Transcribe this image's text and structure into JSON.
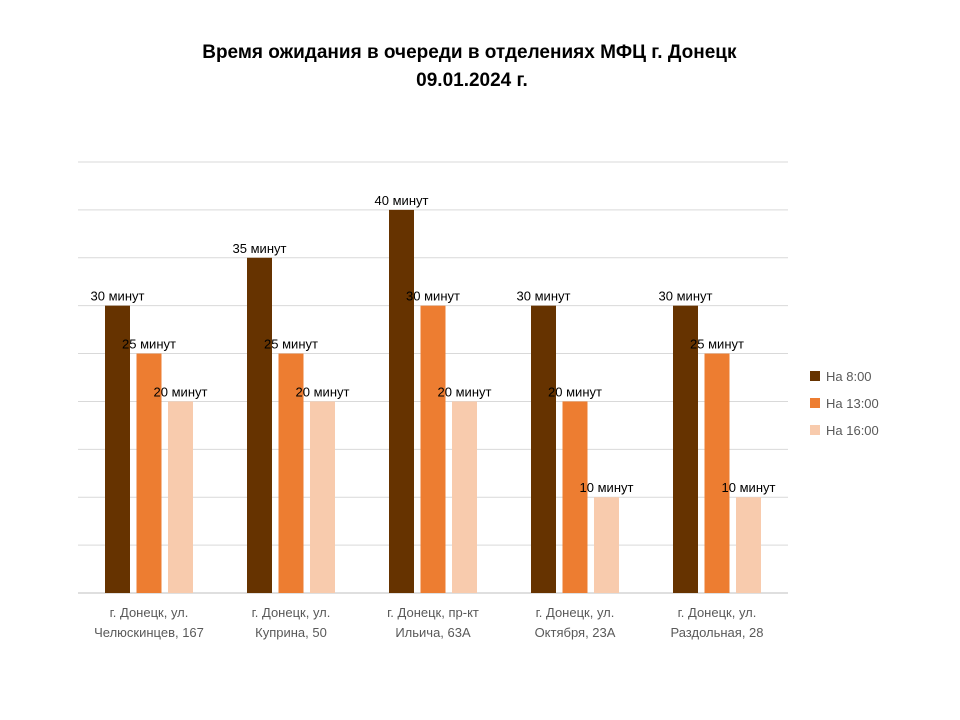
{
  "chart_data": {
    "type": "bar",
    "title": [
      "Время ожидания в очереди в отделениях МФЦ г. Донецк",
      "09.01.2024 г."
    ],
    "categories": [
      [
        "г. Донецк, ул.",
        "Челюскинцев, 167"
      ],
      [
        "г. Донецк, ул.",
        "Куприна, 50"
      ],
      [
        "г. Донецк, пр-кт",
        "Ильича, 63А"
      ],
      [
        "г. Донецк, ул.",
        "Октября, 23А"
      ],
      [
        "г. Донецк, ул.",
        "Раздольная, 28"
      ]
    ],
    "series": [
      {
        "name": "На 8:00",
        "color": "#663300",
        "values": [
          30,
          35,
          40,
          30,
          30
        ],
        "labels": [
          "30 минут",
          "35 минут",
          "40 минут",
          "30 минут",
          "30 минут"
        ]
      },
      {
        "name": "На 13:00",
        "color": "#ED7D31",
        "values": [
          25,
          25,
          30,
          20,
          25
        ],
        "labels": [
          "25 минут",
          "25 минут",
          "30 минут",
          "20 минут",
          "25 минут"
        ]
      },
      {
        "name": "На 16:00",
        "color": "#F8CBAD",
        "values": [
          20,
          20,
          20,
          10,
          10
        ],
        "labels": [
          "20 минут",
          "20 минут",
          "20 минут",
          "10 минут",
          "10 минут"
        ]
      }
    ],
    "ylim": [
      0,
      45
    ],
    "grid_step": 5,
    "grid": true,
    "gridline_color": "#D9D9D9",
    "legend_position": "right"
  }
}
